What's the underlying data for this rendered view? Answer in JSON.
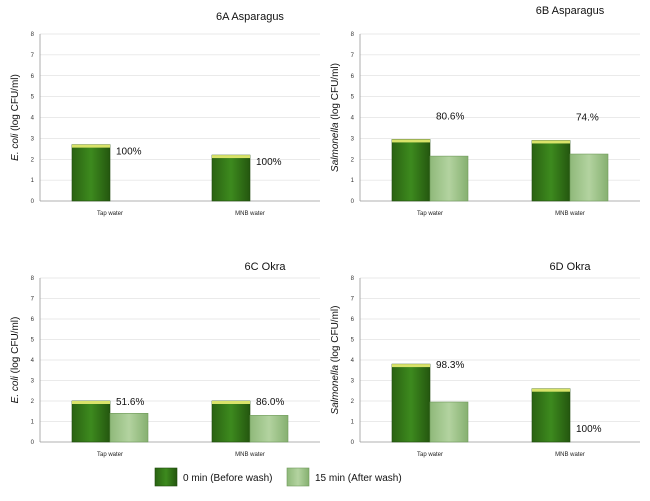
{
  "colors": {
    "before_wash": "#2f6e16",
    "after_wash": "#9fc48a",
    "bar_top": "#d9e36a"
  },
  "legend": {
    "before": "0 min (Before wash)",
    "after": "15 min (After wash)"
  },
  "chart_data": [
    {
      "type": "bar",
      "title": "6A Asparagus",
      "ylabel_italic": "E. coli",
      "ylabel_rest": " (log CFU/ml)",
      "ylim": [
        0,
        8
      ],
      "yticks": [
        "0",
        "1",
        "2",
        "3",
        "4",
        "5",
        "6",
        "7",
        "8"
      ],
      "categories": [
        "Tap water",
        "MNB water"
      ],
      "grid": true,
      "series": [
        {
          "name": "0 min (Before wash)",
          "values": [
            2.7,
            2.2
          ]
        },
        {
          "name": "15 min (After wash)",
          "values": [
            null,
            null
          ]
        }
      ],
      "annotations": [
        "100%",
        "100%"
      ]
    },
    {
      "type": "bar",
      "title": "6B Asparagus",
      "ylabel_italic": "Salmonella",
      "ylabel_rest": " (log CFU/ml)",
      "ylim": [
        0,
        8
      ],
      "yticks": [
        "0",
        "1",
        "2",
        "3",
        "4",
        "5",
        "6",
        "7",
        "8"
      ],
      "categories": [
        "Tap water",
        "MNB water"
      ],
      "grid": true,
      "series": [
        {
          "name": "0 min (Before wash)",
          "values": [
            2.95,
            2.9
          ]
        },
        {
          "name": "15 min (After wash)",
          "values": [
            2.15,
            2.25
          ]
        }
      ],
      "annotations": [
        "80.6%",
        "74.%"
      ]
    },
    {
      "type": "bar",
      "title": "6C  Okra",
      "ylabel_italic": "E. coli",
      "ylabel_rest": " (log CFU/ml)",
      "ylim": [
        0,
        8
      ],
      "yticks": [
        "0",
        "1",
        "2",
        "3",
        "4",
        "5",
        "6",
        "7",
        "8"
      ],
      "categories": [
        "Tap water",
        "MNB water"
      ],
      "grid": true,
      "series": [
        {
          "name": "0 min (Before wash)",
          "values": [
            2.0,
            2.0
          ]
        },
        {
          "name": "15 min (After wash)",
          "values": [
            1.4,
            1.3
          ]
        }
      ],
      "annotations": [
        "51.6%",
        "86.0%"
      ]
    },
    {
      "type": "bar",
      "title": "6D  Okra",
      "ylabel_italic": "Salmonella",
      "ylabel_rest": " (log CFU/ml)",
      "ylim": [
        0,
        8
      ],
      "yticks": [
        "0",
        "1",
        "2",
        "3",
        "4",
        "5",
        "6",
        "7",
        "8"
      ],
      "categories": [
        "Tap water",
        "MNB water"
      ],
      "grid": true,
      "series": [
        {
          "name": "0 min (Before wash)",
          "values": [
            3.8,
            2.6
          ]
        },
        {
          "name": "15 min (After wash)",
          "values": [
            1.95,
            null
          ]
        }
      ],
      "annotations": [
        "98.3%",
        "100%"
      ]
    }
  ]
}
